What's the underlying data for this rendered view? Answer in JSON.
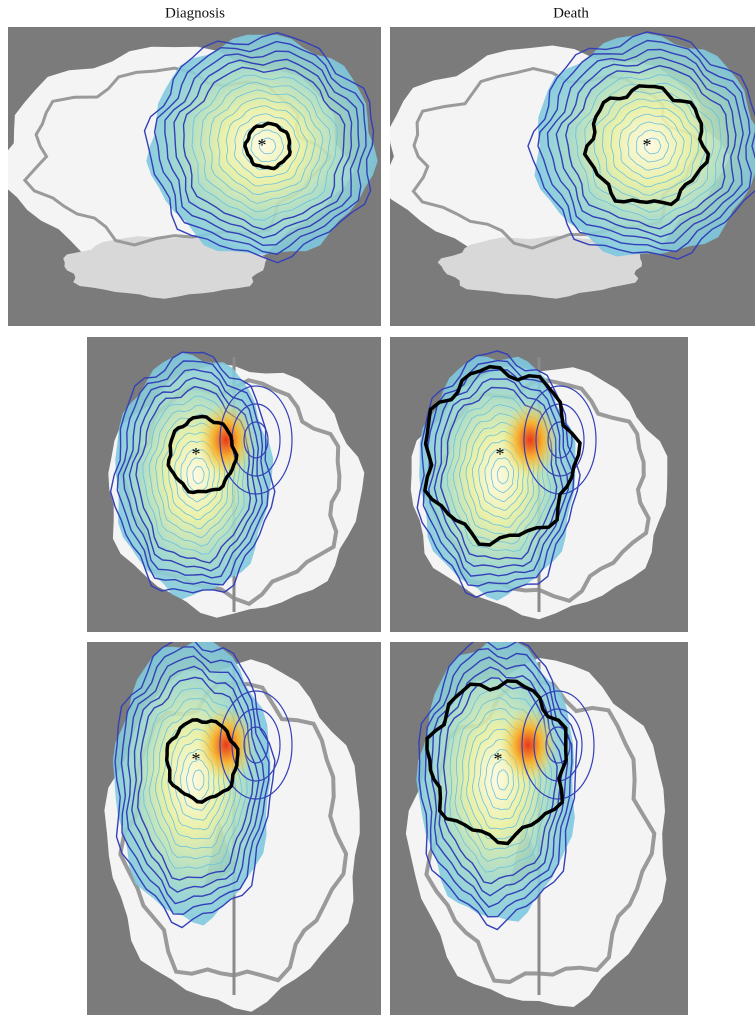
{
  "column_headers": [
    "Diagnosis",
    "Death"
  ]
}
